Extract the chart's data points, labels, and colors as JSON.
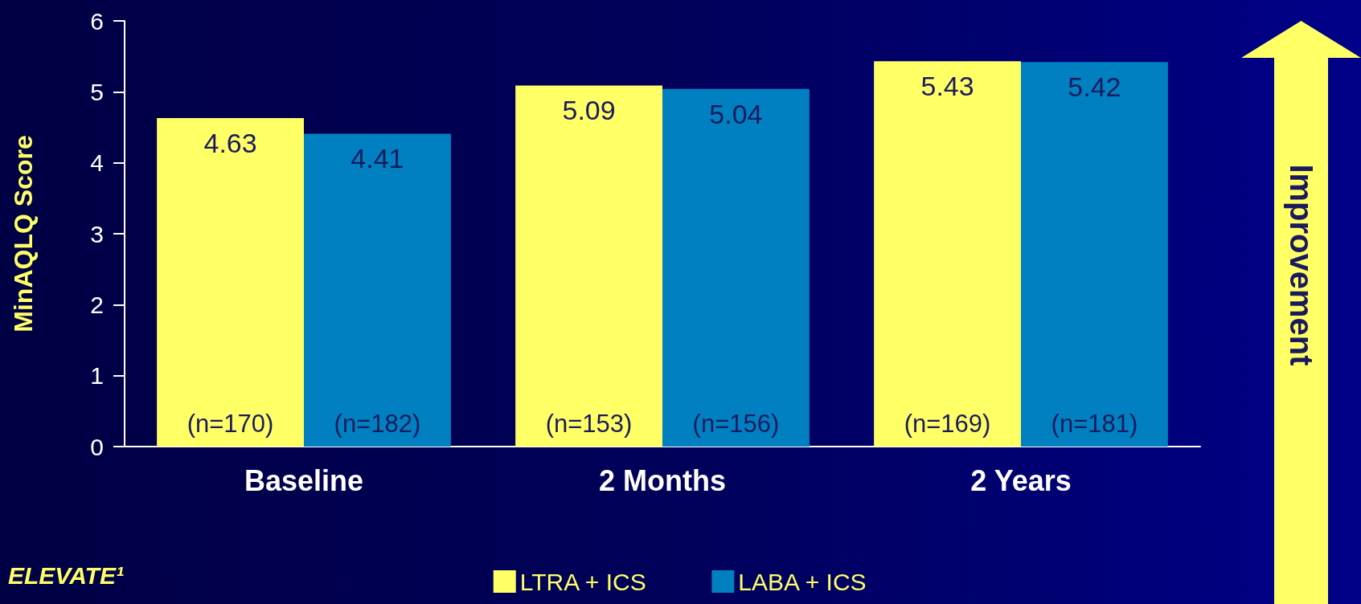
{
  "chart_data": {
    "type": "bar",
    "ylabel": "MinAQLQ Score",
    "categories": [
      "Baseline",
      "2 Months",
      "2 Years"
    ],
    "series": [
      {
        "name": "LTRA + ICS",
        "color": "#ffff66",
        "values": [
          4.63,
          5.09,
          5.43
        ]
      },
      {
        "name": "LABA + ICS",
        "color": "#0080c0",
        "values": [
          4.41,
          5.04,
          5.42
        ]
      }
    ],
    "ylim": [
      0,
      6
    ],
    "yticks": [
      0,
      1,
      2,
      3,
      4,
      5,
      6
    ],
    "data_labels": true,
    "grid": false,
    "legend": "bottom",
    "annotations": [
      {
        "text": "(n=170)",
        "x": "Baseline",
        "y": 0
      },
      {
        "text": "(n=182)",
        "x": "Baseline",
        "y": 0
      },
      {
        "text": "(n=153)",
        "x": "2 Months",
        "y": 0
      },
      {
        "text": "(n=156)",
        "x": "2 Months",
        "y": 0
      },
      {
        "text": "(n=169)",
        "x": "2 Years",
        "y": 0
      },
      {
        "text": "(n=181)",
        "x": "2 Years",
        "y": 0
      },
      "Improvement",
      "ELEVATE¹"
    ]
  }
}
